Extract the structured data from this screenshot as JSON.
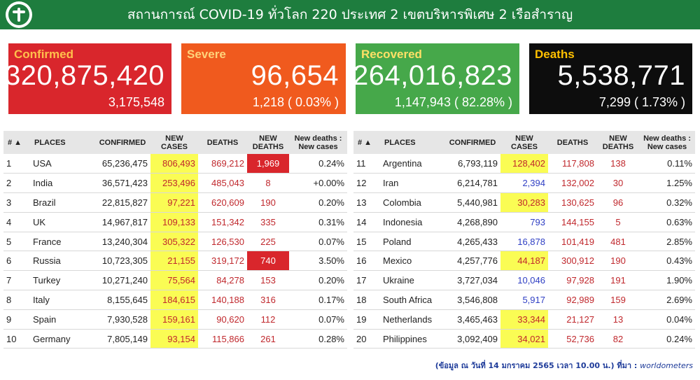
{
  "header": {
    "title": "สถานการณ์ COVID-19 ทั่วโลก 220 ประเทศ 2 เขตบริหารพิเศษ 2 เรือสำราญ"
  },
  "colors": {
    "header_bg": "#1e7d3e",
    "confirmed": "#d9262c",
    "severe": "#f05a1e",
    "recovered": "#46a84a",
    "deaths": "#0d0d0d",
    "highlight": "#fafc54"
  },
  "cards": {
    "confirmed": {
      "label": "Confirmed",
      "value": "320,875,420",
      "sub": "3,175,548"
    },
    "severe": {
      "label": "Severe",
      "value": "96,654",
      "sub": "1,218 ( 0.03% )"
    },
    "recovered": {
      "label": "Recovered",
      "value": "264,016,823",
      "sub": "1,147,943 ( 82.28% )"
    },
    "deaths": {
      "label": "Deaths",
      "value": "5,538,771",
      "sub": "7,299 ( 1.73% )"
    }
  },
  "table": {
    "headers": {
      "rank": "# ▲",
      "places": "PLACES",
      "confirmed": "CONFIRMED",
      "new_cases": "NEW CASES",
      "deaths": "DEATHS",
      "new_deaths": "NEW DEATHS",
      "ratio_left": "New deaths : New cases",
      "ratio_right": "New deaths : New cases"
    },
    "left": [
      {
        "rank": "1",
        "place": "USA",
        "confirmed": "65,236,475",
        "new_cases": "806,493",
        "deaths": "869,212",
        "new_deaths": "1,969",
        "ratio": "0.24%"
      },
      {
        "rank": "2",
        "place": "India",
        "confirmed": "36,571,423",
        "new_cases": "253,496",
        "deaths": "485,043",
        "new_deaths": "8",
        "ratio": "+0.00%"
      },
      {
        "rank": "3",
        "place": "Brazil",
        "confirmed": "22,815,827",
        "new_cases": "97,221",
        "deaths": "620,609",
        "new_deaths": "190",
        "ratio": "0.20%"
      },
      {
        "rank": "4",
        "place": "UK",
        "confirmed": "14,967,817",
        "new_cases": "109,133",
        "deaths": "151,342",
        "new_deaths": "335",
        "ratio": "0.31%"
      },
      {
        "rank": "5",
        "place": "France",
        "confirmed": "13,240,304",
        "new_cases": "305,322",
        "deaths": "126,530",
        "new_deaths": "225",
        "ratio": "0.07%"
      },
      {
        "rank": "6",
        "place": "Russia",
        "confirmed": "10,723,305",
        "new_cases": "21,155",
        "deaths": "319,172",
        "new_deaths": "740",
        "ratio": "3.50%"
      },
      {
        "rank": "7",
        "place": "Turkey",
        "confirmed": "10,271,240",
        "new_cases": "75,564",
        "deaths": "84,278",
        "new_deaths": "153",
        "ratio": "0.20%"
      },
      {
        "rank": "8",
        "place": "Italy",
        "confirmed": "8,155,645",
        "new_cases": "184,615",
        "deaths": "140,188",
        "new_deaths": "316",
        "ratio": "0.17%"
      },
      {
        "rank": "9",
        "place": "Spain",
        "confirmed": "7,930,528",
        "new_cases": "159,161",
        "deaths": "90,620",
        "new_deaths": "112",
        "ratio": "0.07%"
      },
      {
        "rank": "10",
        "place": "Germany",
        "confirmed": "7,805,149",
        "new_cases": "93,154",
        "deaths": "115,866",
        "new_deaths": "261",
        "ratio": "0.28%"
      }
    ],
    "right": [
      {
        "rank": "11",
        "place": "Argentina",
        "confirmed": "6,793,119",
        "new_cases": "128,402",
        "deaths": "117,808",
        "new_deaths": "138",
        "ratio": "0.11%"
      },
      {
        "rank": "12",
        "place": "Iran",
        "confirmed": "6,214,781",
        "new_cases": "2,394",
        "deaths": "132,002",
        "new_deaths": "30",
        "ratio": "1.25%"
      },
      {
        "rank": "13",
        "place": "Colombia",
        "confirmed": "5,440,981",
        "new_cases": "30,283",
        "deaths": "130,625",
        "new_deaths": "96",
        "ratio": "0.32%"
      },
      {
        "rank": "14",
        "place": "Indonesia",
        "confirmed": "4,268,890",
        "new_cases": "793",
        "deaths": "144,155",
        "new_deaths": "5",
        "ratio": "0.63%"
      },
      {
        "rank": "15",
        "place": "Poland",
        "confirmed": "4,265,433",
        "new_cases": "16,878",
        "deaths": "101,419",
        "new_deaths": "481",
        "ratio": "2.85%"
      },
      {
        "rank": "16",
        "place": "Mexico",
        "confirmed": "4,257,776",
        "new_cases": "44,187",
        "deaths": "300,912",
        "new_deaths": "190",
        "ratio": "0.43%"
      },
      {
        "rank": "17",
        "place": "Ukraine",
        "confirmed": "3,727,034",
        "new_cases": "10,046",
        "deaths": "97,928",
        "new_deaths": "191",
        "ratio": "1.90%"
      },
      {
        "rank": "18",
        "place": "South Africa",
        "confirmed": "3,546,808",
        "new_cases": "5,917",
        "deaths": "92,989",
        "new_deaths": "159",
        "ratio": "2.69%"
      },
      {
        "rank": "19",
        "place": "Netherlands",
        "confirmed": "3,465,463",
        "new_cases": "33,344",
        "deaths": "21,127",
        "new_deaths": "13",
        "ratio": "0.04%"
      },
      {
        "rank": "20",
        "place": "Philippines",
        "confirmed": "3,092,409",
        "new_cases": "34,021",
        "deaths": "52,736",
        "new_deaths": "82",
        "ratio": "0.24%"
      }
    ]
  },
  "footer": {
    "text": "(ข้อมูล ณ วันที่ 14 มกราคม 2565 เวลา 10.00 น.) ที่มา :",
    "source": "worldometers"
  }
}
